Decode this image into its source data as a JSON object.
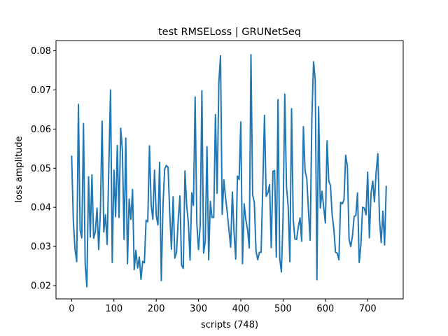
{
  "chart_data": {
    "type": "line",
    "title": "test RMSELoss | GRUNetSeq",
    "xlabel": "scripts (748)",
    "ylabel": "loss amplitude",
    "xlim": [
      -37,
      784
    ],
    "ylim": [
      0.0166,
      0.0826
    ],
    "xticks": [
      0,
      100,
      200,
      300,
      400,
      500,
      600,
      700
    ],
    "yticks": [
      0.02,
      0.03,
      0.04,
      0.05,
      0.06,
      0.07,
      0.08
    ],
    "ytick_labels": [
      "0.02",
      "0.03",
      "0.04",
      "0.05",
      "0.06",
      "0.07",
      "0.08"
    ],
    "grid": false,
    "line_color": "#1f77b4",
    "series": [
      {
        "x": [
          0,
          4,
          8,
          12,
          16,
          20,
          24,
          28,
          32,
          36,
          40,
          44,
          48,
          52,
          56,
          60,
          64,
          68,
          72,
          76,
          80,
          84,
          88,
          92,
          96,
          100,
          104,
          108,
          112,
          116,
          120,
          124,
          128,
          132,
          136,
          140,
          144,
          148,
          152,
          156,
          160,
          164,
          168,
          172,
          176,
          180,
          184,
          188,
          192,
          196,
          200,
          204,
          208,
          212,
          216,
          220,
          224,
          228,
          232,
          236,
          240,
          244,
          248,
          252,
          256,
          260,
          264,
          268,
          272,
          276,
          280,
          284,
          288,
          292,
          296,
          300,
          304,
          308,
          312,
          316,
          320,
          324,
          328,
          332,
          336,
          340,
          344,
          348,
          352,
          356,
          360,
          364,
          368,
          372,
          376,
          380,
          384,
          388,
          392,
          396,
          400,
          404,
          408,
          412,
          416,
          420,
          424,
          428,
          432,
          436,
          440,
          444,
          448,
          452,
          456,
          460,
          464,
          468,
          472,
          476,
          480,
          484,
          488,
          492,
          496,
          500,
          504,
          508,
          512,
          516,
          520,
          524,
          528,
          532,
          536,
          540,
          544,
          548,
          552,
          556,
          560,
          564,
          568,
          572,
          576,
          580,
          584,
          588,
          592,
          596,
          600,
          604,
          608,
          612,
          616,
          620,
          624,
          628,
          632,
          636,
          640,
          644,
          648,
          652,
          656,
          660,
          664,
          668,
          672,
          676,
          680,
          684,
          688,
          692,
          696,
          700,
          704,
          708,
          712,
          716,
          720,
          724,
          728,
          732,
          736,
          740,
          744
        ],
        "values": [
          0.0532,
          0.0365,
          0.0292,
          0.0261,
          0.0663,
          0.0342,
          0.0322,
          0.0614,
          0.0256,
          0.0197,
          0.0478,
          0.0324,
          0.0483,
          0.0321,
          0.0337,
          0.0398,
          0.0292,
          0.039,
          0.062,
          0.0337,
          0.0381,
          0.0305,
          0.051,
          0.07,
          0.0259,
          0.0495,
          0.0376,
          0.0558,
          0.0374,
          0.0602,
          0.0545,
          0.0318,
          0.0577,
          0.0256,
          0.0421,
          0.0369,
          0.0446,
          0.0241,
          0.029,
          0.0245,
          0.0273,
          0.0216,
          0.0262,
          0.0258,
          0.0367,
          0.0363,
          0.0557,
          0.0407,
          0.0369,
          0.0495,
          0.0379,
          0.0355,
          0.0515,
          0.0213,
          0.0405,
          0.0498,
          0.0507,
          0.0502,
          0.0385,
          0.0293,
          0.0427,
          0.027,
          0.0285,
          0.0367,
          0.0429,
          0.0252,
          0.0244,
          0.0493,
          0.0405,
          0.0361,
          0.0265,
          0.0437,
          0.0405,
          0.0682,
          0.036,
          0.0292,
          0.0354,
          0.0698,
          0.0283,
          0.0313,
          0.0555,
          0.0266,
          0.0415,
          0.0374,
          0.0374,
          0.0637,
          0.0436,
          0.0716,
          0.0787,
          0.0382,
          0.047,
          0.0424,
          0.0387,
          0.0342,
          0.0298,
          0.0439,
          0.0336,
          0.0268,
          0.048,
          0.0471,
          0.0618,
          0.0256,
          0.0409,
          0.0368,
          0.0343,
          0.0296,
          0.079,
          0.0432,
          0.0412,
          0.0288,
          0.0266,
          0.0285,
          0.0285,
          0.0456,
          0.0635,
          0.0428,
          0.0437,
          0.0458,
          0.0297,
          0.0492,
          0.0494,
          0.0273,
          0.0675,
          0.0269,
          0.0235,
          0.0375,
          0.0689,
          0.0453,
          0.0403,
          0.0261,
          0.0652,
          0.0368,
          0.0319,
          0.0318,
          0.035,
          0.0373,
          0.0313,
          0.0606,
          0.0493,
          0.0474,
          0.0391,
          0.0316,
          0.0625,
          0.0772,
          0.0725,
          0.0215,
          0.0657,
          0.0398,
          0.0441,
          0.04,
          0.036,
          0.057,
          0.0467,
          0.0456,
          0.0381,
          0.0344,
          0.0285,
          0.0283,
          0.0266,
          0.0413,
          0.0409,
          0.0419,
          0.0533,
          0.0505,
          0.0318,
          0.03,
          0.0326,
          0.0377,
          0.0379,
          0.0437,
          0.0259,
          0.0306,
          0.04,
          0.0398,
          0.0381,
          0.049,
          0.0322,
          0.0436,
          0.0467,
          0.0414,
          0.049,
          0.0537,
          0.0369,
          0.031,
          0.039,
          0.0304,
          0.0455
        ]
      }
    ]
  }
}
